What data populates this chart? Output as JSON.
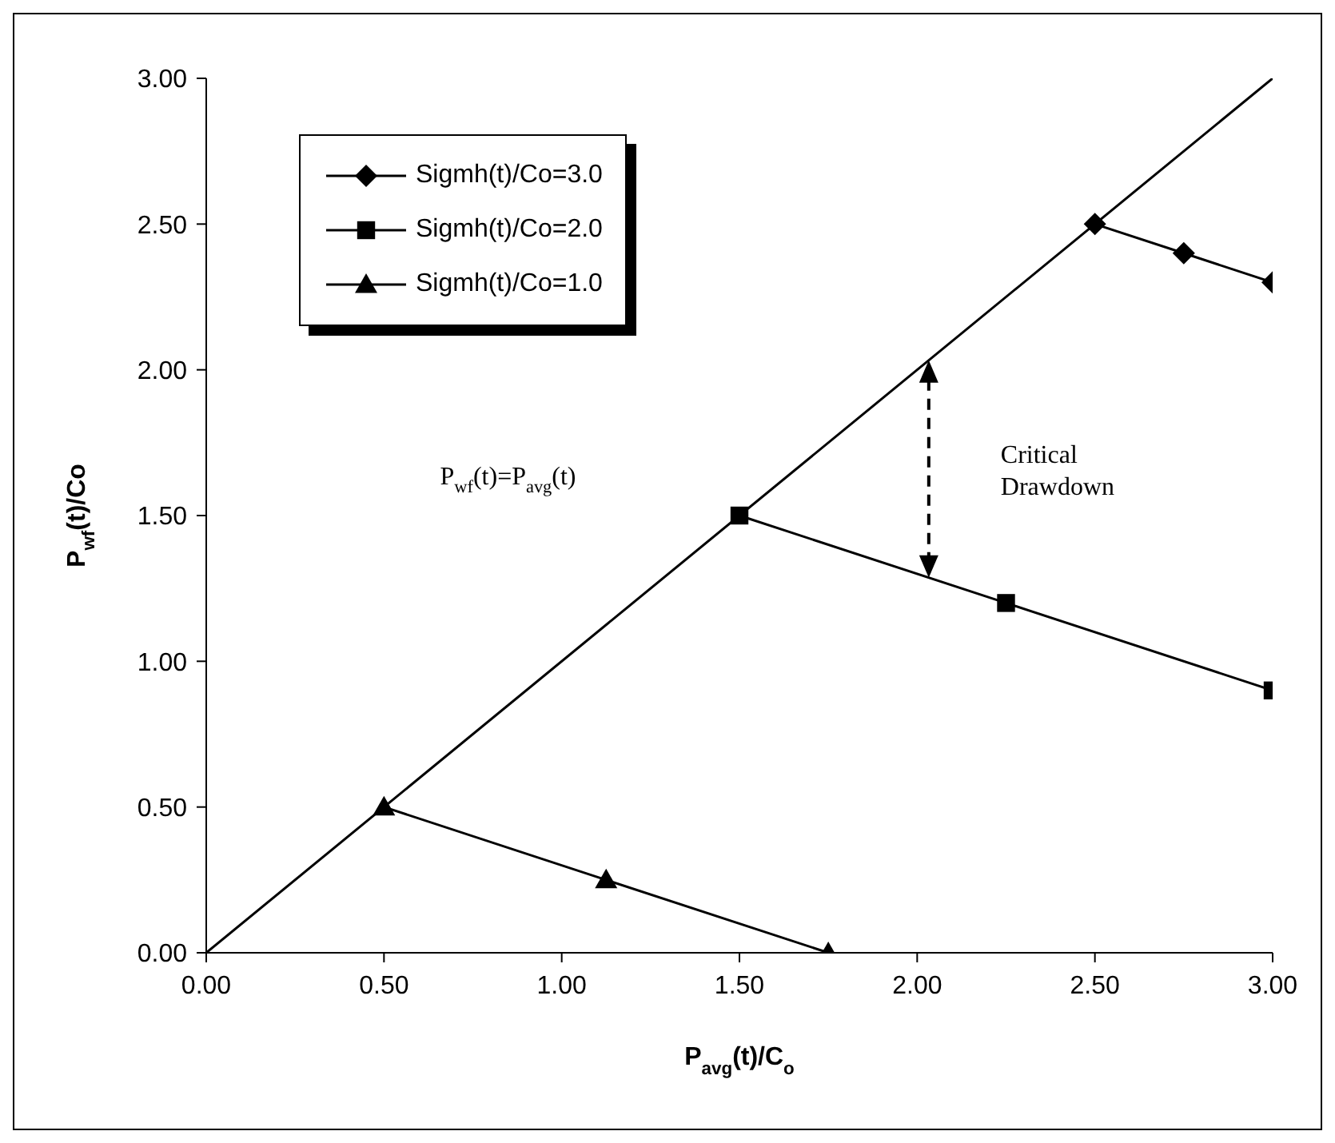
{
  "chart_data": {
    "type": "line",
    "xlabel": "P$_{avg}$(t)/C$_{o}$",
    "ylabel": "P$_{wf}$(t)/Co",
    "xlim": [
      0,
      3
    ],
    "ylim": [
      0,
      3
    ],
    "xticks": [
      {
        "value": 0,
        "label": "0.00"
      },
      {
        "value": 0.5,
        "label": "0.50"
      },
      {
        "value": 1,
        "label": "1.00"
      },
      {
        "value": 1.5,
        "label": "1.50"
      },
      {
        "value": 2,
        "label": "2.00"
      },
      {
        "value": 2.5,
        "label": "2.50"
      },
      {
        "value": 3,
        "label": "3.00"
      }
    ],
    "yticks": [
      {
        "value": 0,
        "label": "0.00"
      },
      {
        "value": 0.5,
        "label": "0.50"
      },
      {
        "value": 1,
        "label": "1.00"
      },
      {
        "value": 1.5,
        "label": "1.50"
      },
      {
        "value": 2,
        "label": "2.00"
      },
      {
        "value": 2.5,
        "label": "2.50"
      },
      {
        "value": 3,
        "label": "3.00"
      }
    ],
    "legend": "top left",
    "line_style": "solid",
    "series": [
      {
        "color": "#000000",
        "marker": "none",
        "x": [
          0,
          3
        ],
        "values": [
          0,
          3
        ]
      },
      {
        "name": "Sigmh(t)/Co=3.0",
        "color": "#000000",
        "marker": "diamond",
        "x": [
          2.5,
          2.75,
          3.0
        ],
        "values": [
          2.5,
          2.4,
          2.3
        ]
      },
      {
        "name": "Sigmh(t)/Co=2.0",
        "color": "#000000",
        "marker": "square",
        "x": [
          1.5,
          2.25,
          3.0
        ],
        "values": [
          1.5,
          1.2,
          0.9
        ]
      },
      {
        "name": "Sigmh(t)/Co=1.0",
        "color": "#000000",
        "marker": "triangle",
        "x": [
          0.5,
          1.125,
          1.75
        ],
        "values": [
          0.5,
          0.25,
          0
        ]
      }
    ],
    "annotations": [
      "P$_{wf}$(t)=P$_{avg}$(t)",
      "Critical Drawdown"
    ]
  }
}
